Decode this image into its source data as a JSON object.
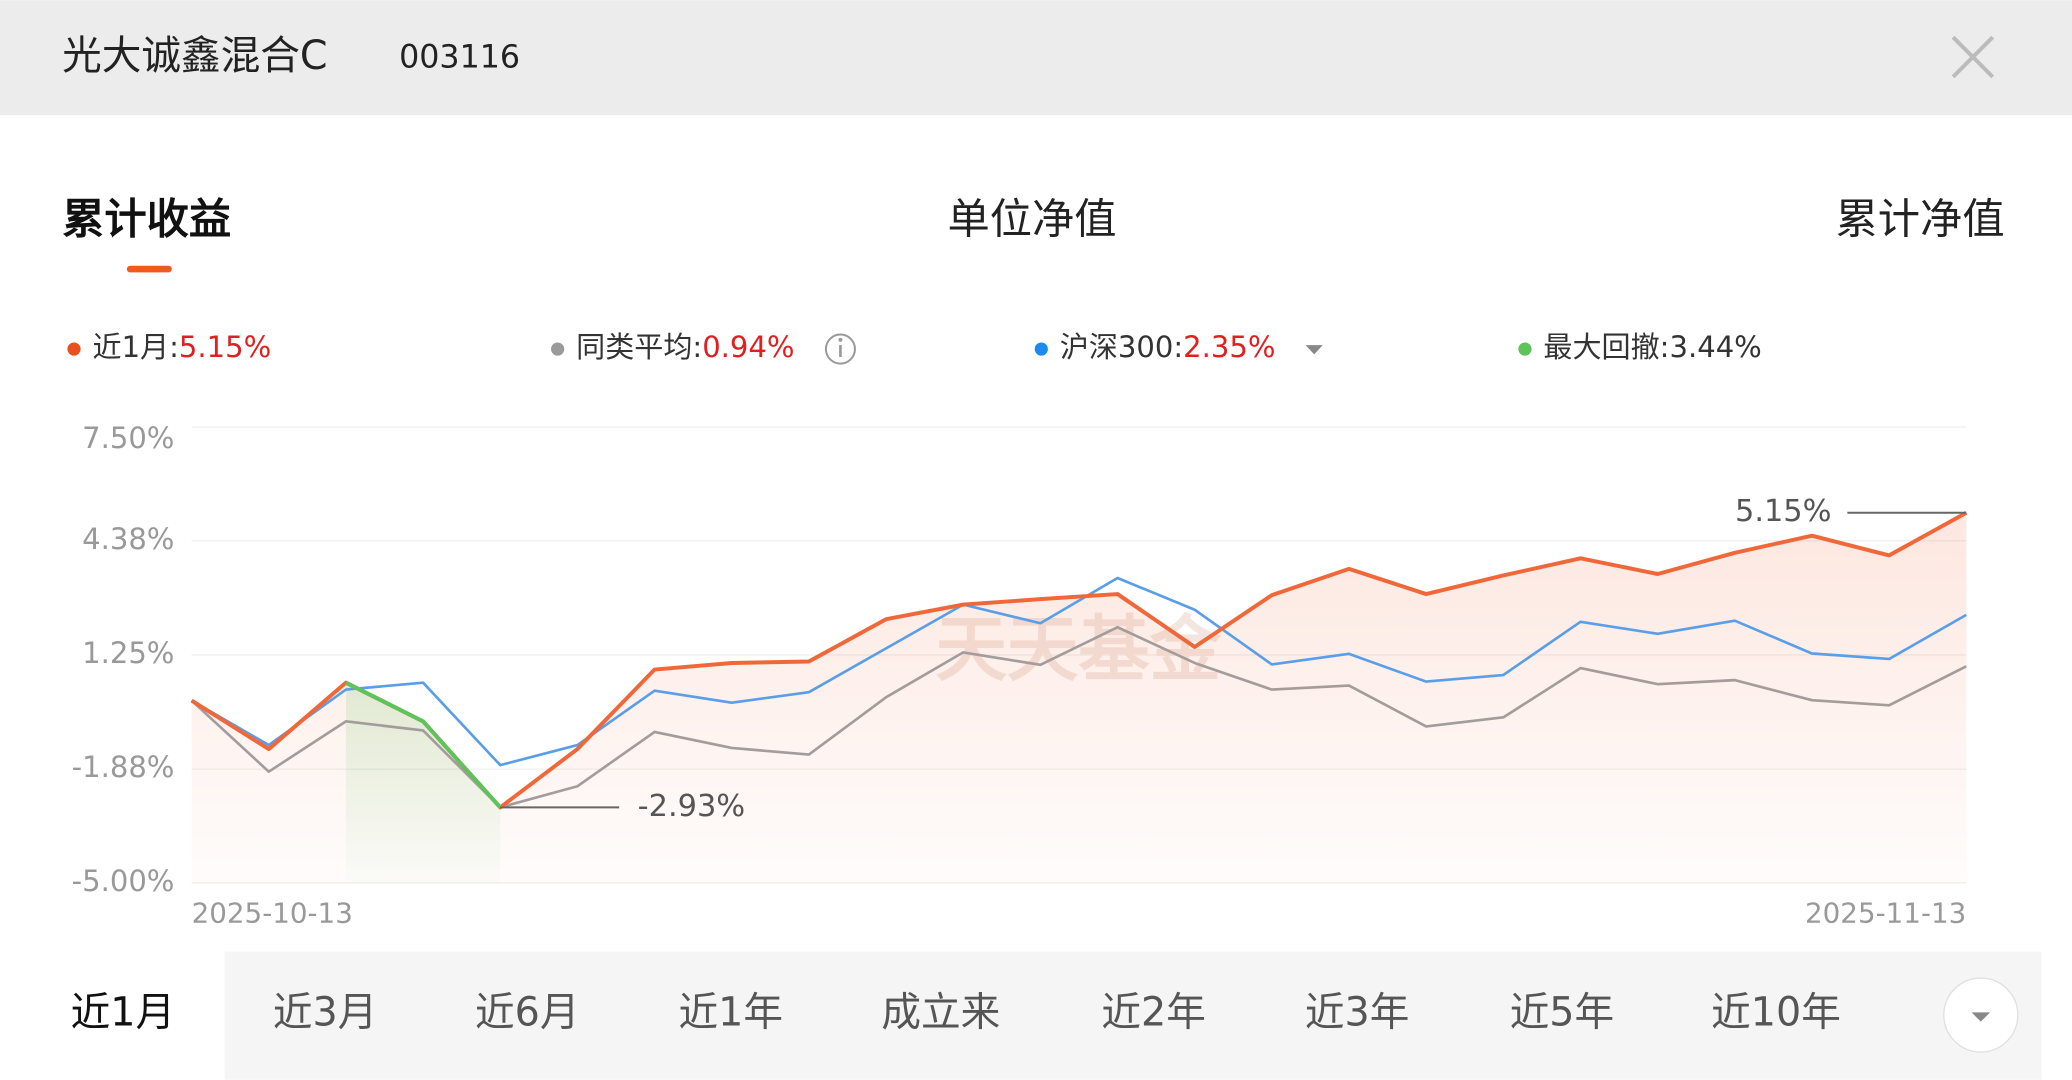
{
  "header": {
    "title": "光大诚鑫混合C",
    "code": "003116"
  },
  "tabs": [
    "累计收益",
    "单位净值",
    "累计净值"
  ],
  "ranges": [
    "近1月",
    "近3月",
    "近6月",
    "近1年",
    "成立来",
    "近2年",
    "近3年",
    "近5年",
    "近10年"
  ],
  "chart_data": {
    "type": "line",
    "watermark": "天天基金",
    "categories": [
      "2025-10-13",
      null,
      null,
      null,
      null,
      null,
      null,
      null,
      null,
      null,
      null,
      null,
      null,
      null,
      null,
      null,
      null,
      null,
      null,
      null,
      null,
      null,
      null,
      "2025-11-13"
    ],
    "series": [
      {
        "name": "近1月:",
        "legend_value": "5.15%",
        "color": "#f0683a",
        "dot": "#e8501e",
        "values": [
          0,
          -1.33,
          0.49,
          -0.57,
          -2.93,
          -1.33,
          0.85,
          1.03,
          1.07,
          2.23,
          2.63,
          2.78,
          2.92,
          1.47,
          2.89,
          3.61,
          2.92,
          3.43,
          3.9,
          3.47,
          4.05,
          4.52,
          3.98,
          5.15
        ]
      },
      {
        "name": "同类平均:",
        "legend_value": "0.94%",
        "color": "#a39c9a",
        "dot": "#9a9a9a",
        "values": [
          0,
          -1.95,
          -0.57,
          -0.82,
          -2.93,
          -2.35,
          -0.86,
          -1.3,
          -1.48,
          0.09,
          1.32,
          0.98,
          2.01,
          1.03,
          0.3,
          0.41,
          -0.71,
          -0.46,
          0.89,
          0.45,
          0.56,
          0.01,
          -0.13,
          0.94
        ]
      },
      {
        "name": "沪深300:",
        "legend_value": "2.35%",
        "color": "#5b9ee8",
        "dot": "#1a8cf0",
        "values": [
          0,
          -1.22,
          0.3,
          0.49,
          -1.77,
          -1.22,
          0.27,
          -0.06,
          0.23,
          1.43,
          2.63,
          2.12,
          3.36,
          2.49,
          0.99,
          1.28,
          0.52,
          0.7,
          2.16,
          1.83,
          2.19,
          1.29,
          1.14,
          2.35
        ]
      },
      {
        "name": "最大回撤:",
        "legend_value": "3.44%",
        "color": "#5cc45a",
        "dot": "#5cc45a",
        "values": [
          null,
          null,
          0.49,
          -0.57,
          -2.93,
          null,
          null,
          null,
          null,
          null,
          null,
          null,
          null,
          null,
          null,
          null,
          null,
          null,
          null,
          null,
          null,
          null,
          null,
          null
        ]
      }
    ],
    "annotations": [
      "5.15%",
      "-2.93%"
    ],
    "ylim": [
      -5,
      7.5
    ],
    "yticks": [
      {
        "value": 7.5,
        "label": "7.50%"
      },
      {
        "value": 4.38,
        "label": "4.38%"
      },
      {
        "value": 1.25,
        "label": "1.25%"
      },
      {
        "value": -1.88,
        "label": "-1.88%"
      },
      {
        "value": -5,
        "label": "-5.00%"
      }
    ],
    "grid": true
  }
}
